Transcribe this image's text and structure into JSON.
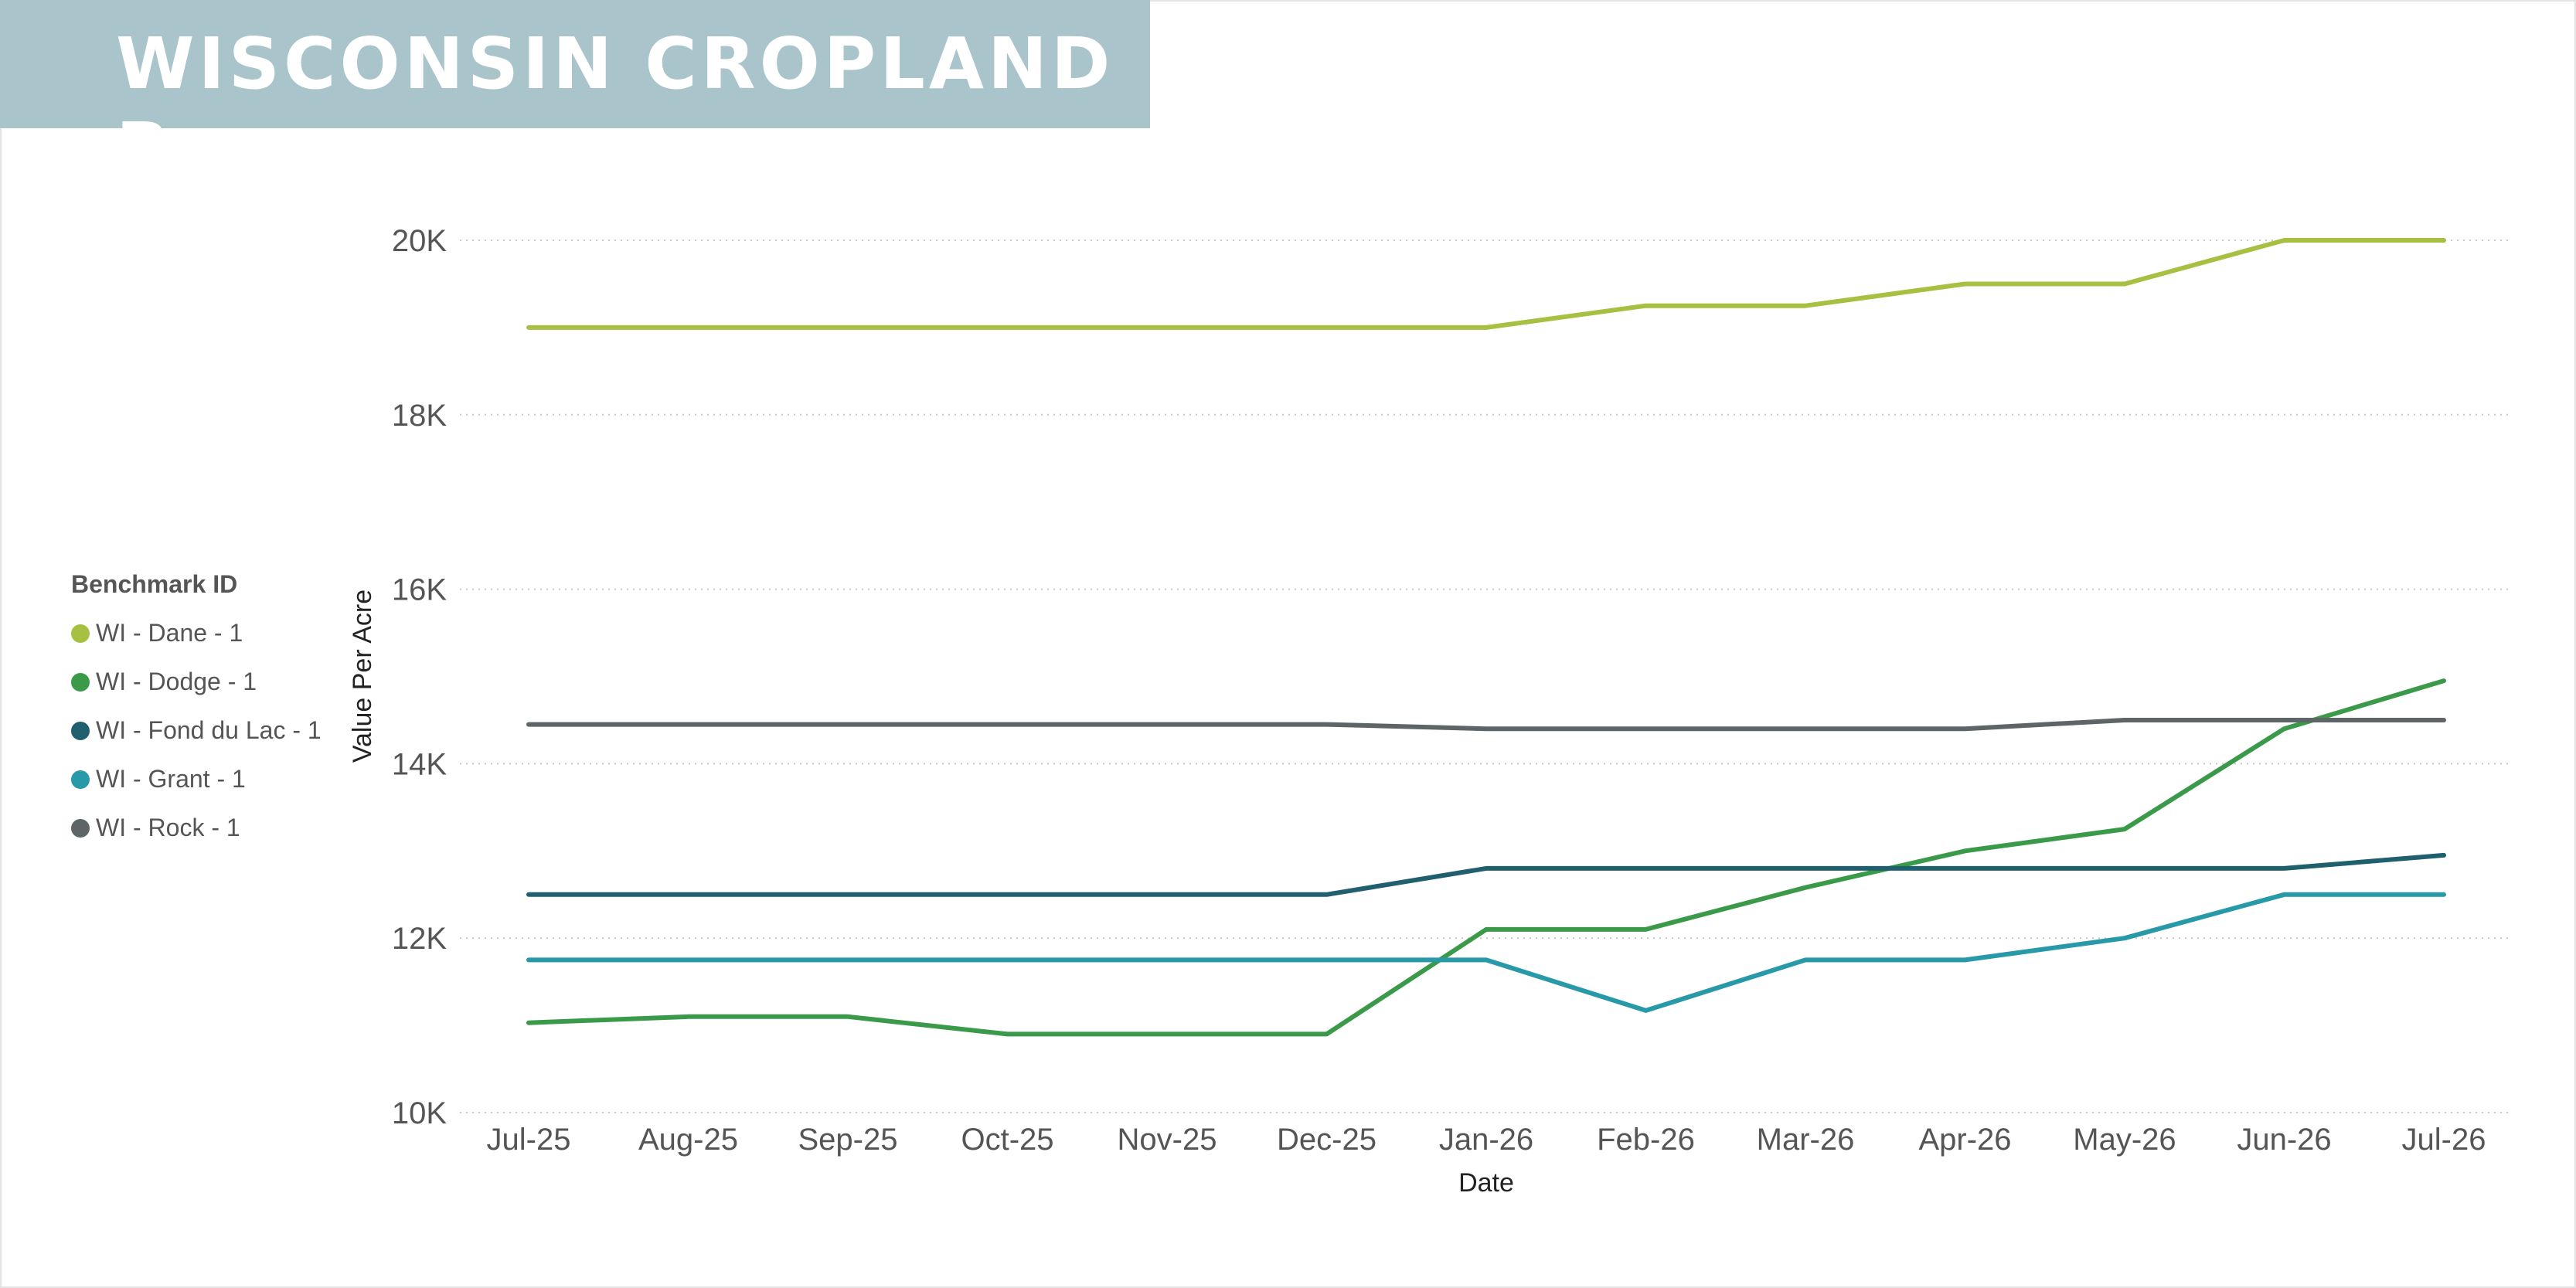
{
  "header": {
    "title": "WISCONSIN CROPLAND B"
  },
  "chart_data": {
    "type": "line",
    "title": "",
    "xlabel": "Date",
    "ylabel": "Value Per Acre",
    "legend_title": "Benchmark ID",
    "legend_position": "left",
    "grid": true,
    "ylim": [
      10000,
      20000
    ],
    "yticks": [
      10000,
      12000,
      14000,
      16000,
      18000,
      20000
    ],
    "ytick_labels": [
      "10K",
      "12K",
      "14K",
      "16K",
      "18K",
      "20K"
    ],
    "categories": [
      "Jul-25",
      "Aug-25",
      "Sep-25",
      "Oct-25",
      "Nov-25",
      "Dec-25",
      "Jan-26",
      "Feb-26",
      "Mar-26",
      "Apr-26",
      "May-26",
      "Jun-26",
      "Jul-26"
    ],
    "series": [
      {
        "name": "WI - Dane - 1",
        "color": "#a6c142",
        "values": [
          19000,
          19000,
          19000,
          19000,
          19000,
          19000,
          19000,
          19250,
          19250,
          19500,
          19500,
          20000,
          20000
        ]
      },
      {
        "name": "WI - Dodge - 1",
        "color": "#3a9a4a",
        "values": [
          11030,
          11100,
          11100,
          10900,
          10900,
          10900,
          12100,
          12100,
          12580,
          13000,
          13250,
          14400,
          14950
        ]
      },
      {
        "name": "WI - Fond du Lac - 1",
        "color": "#1f5f6e",
        "values": [
          12500,
          12500,
          12500,
          12500,
          12500,
          12500,
          12800,
          12800,
          12800,
          12800,
          12800,
          12800,
          12950
        ]
      },
      {
        "name": "WI - Grant - 1",
        "color": "#2899a8",
        "values": [
          11750,
          11750,
          11750,
          11750,
          11750,
          11750,
          11750,
          11170,
          11750,
          11750,
          12000,
          12500,
          12500
        ]
      },
      {
        "name": "WI - Rock - 1",
        "color": "#5e6568",
        "values": [
          14450,
          14450,
          14450,
          14450,
          14450,
          14450,
          14400,
          14400,
          14400,
          14400,
          14500,
          14500,
          14500
        ]
      }
    ]
  }
}
